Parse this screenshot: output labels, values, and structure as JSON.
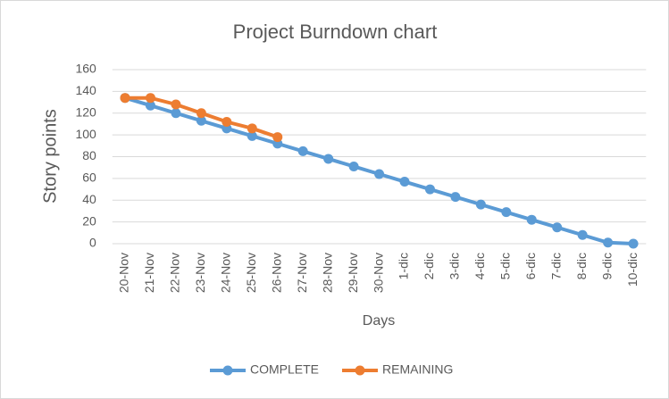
{
  "chart_data": {
    "type": "line",
    "title": "Project Burndown chart",
    "x_label": "Days",
    "y_label": "Story points",
    "categories": [
      "20-Nov",
      "21-Nov",
      "22-Nov",
      "23-Nov",
      "24-Nov",
      "25-Nov",
      "26-Nov",
      "27-Nov",
      "28-Nov",
      "29-Nov",
      "30-Nov",
      "1-dic",
      "2-dic",
      "3-dic",
      "4-dic",
      "5-dic",
      "6-dic",
      "7-dic",
      "8-dic",
      "9-dic",
      "10-dic"
    ],
    "series": [
      {
        "name": "COMPLETE",
        "color": "#5b9bd5",
        "values": [
          134,
          127,
          120,
          113,
          106,
          99,
          92,
          85,
          78,
          71,
          64,
          57,
          50,
          43,
          36,
          29,
          22,
          15,
          8,
          1,
          0
        ]
      },
      {
        "name": "REMAINING",
        "color": "#ed7d31",
        "values": [
          134,
          134,
          128,
          120,
          112,
          106,
          98,
          null,
          null,
          null,
          null,
          null,
          null,
          null,
          null,
          null,
          null,
          null,
          null,
          null,
          null
        ]
      }
    ],
    "ylim": [
      0,
      160
    ],
    "yticks": [
      0,
      20,
      40,
      60,
      80,
      100,
      120,
      140,
      160
    ],
    "grid": true,
    "legend": "bottom"
  }
}
